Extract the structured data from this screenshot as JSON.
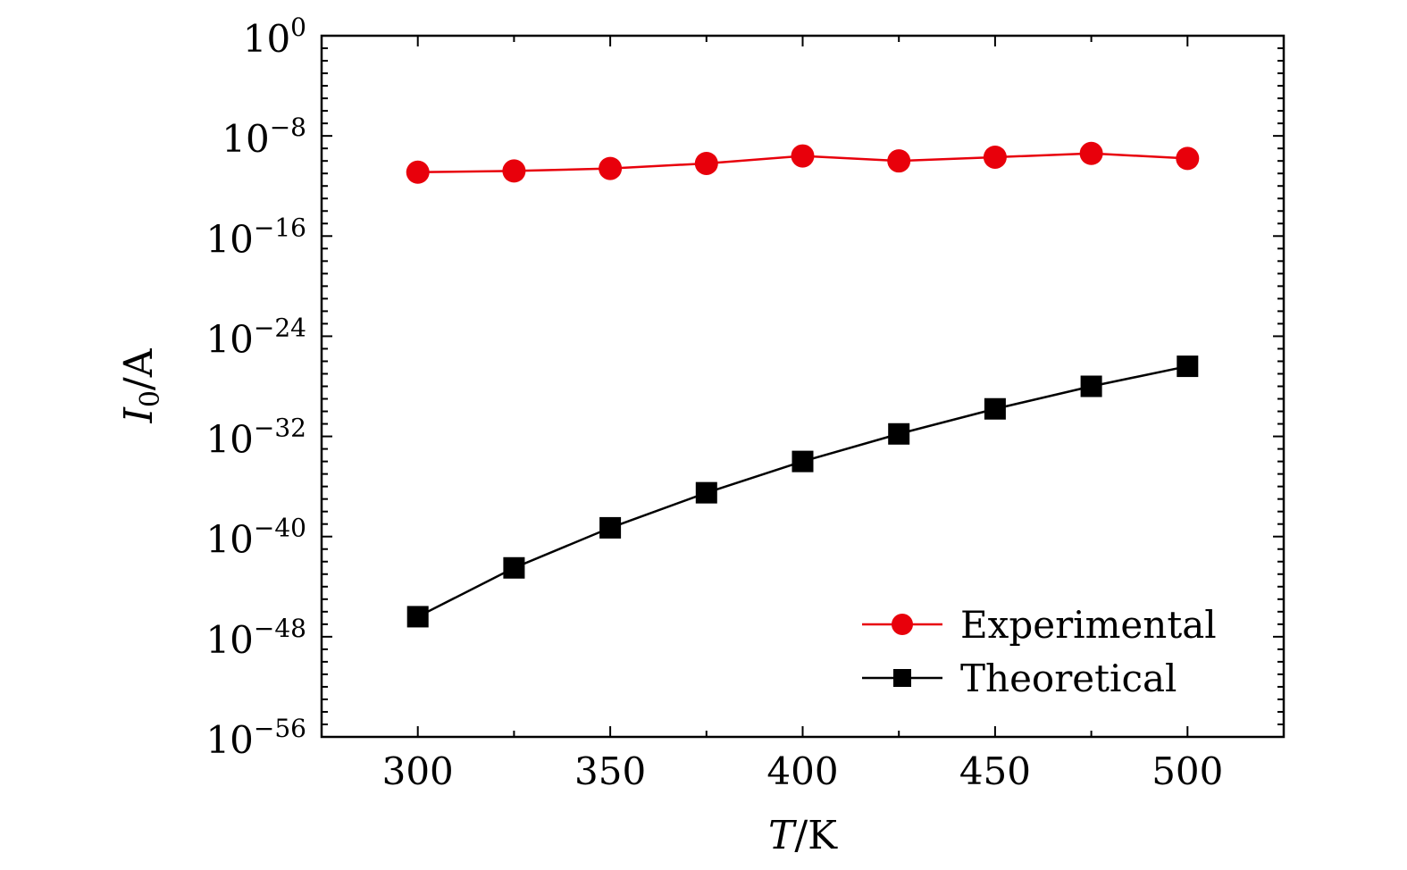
{
  "chart_data": {
    "type": "line",
    "x": [
      300,
      325,
      350,
      375,
      400,
      425,
      450,
      475,
      500
    ],
    "xlim": [
      275,
      525
    ],
    "x_ticks": [
      300,
      350,
      400,
      450,
      500
    ],
    "x_tick_labels": [
      "300",
      "350",
      "400",
      "450",
      "500"
    ],
    "ylim_log10": [
      -56,
      0
    ],
    "y_scale": "log",
    "y_ticks_log10": [
      0,
      -8,
      -16,
      -24,
      -32,
      -40,
      -48,
      -56
    ],
    "y_tick_base": "10",
    "y_tick_exponents": [
      "0",
      "−8",
      "−16",
      "−24",
      "−32",
      "−40",
      "−48",
      "−56"
    ],
    "xlabel": {
      "italic": "T",
      "rest": "/K"
    },
    "ylabel": {
      "italic": "I",
      "sub": "0",
      "rest": "/A"
    },
    "grid": false,
    "legend_position": "bottom-right",
    "series": [
      {
        "name": "Experimental",
        "marker": "circle",
        "color": "#e8000b",
        "log10_values": [
          -10.9,
          -10.8,
          -10.6,
          -10.2,
          -9.6,
          -10.0,
          -9.7,
          -9.4,
          -9.8
        ]
      },
      {
        "name": "Theoretical",
        "marker": "square",
        "color": "#000000",
        "log10_values": [
          -46.4,
          -42.5,
          -39.3,
          -36.5,
          -34.0,
          -31.8,
          -29.8,
          -28.0,
          -26.4
        ]
      }
    ]
  }
}
